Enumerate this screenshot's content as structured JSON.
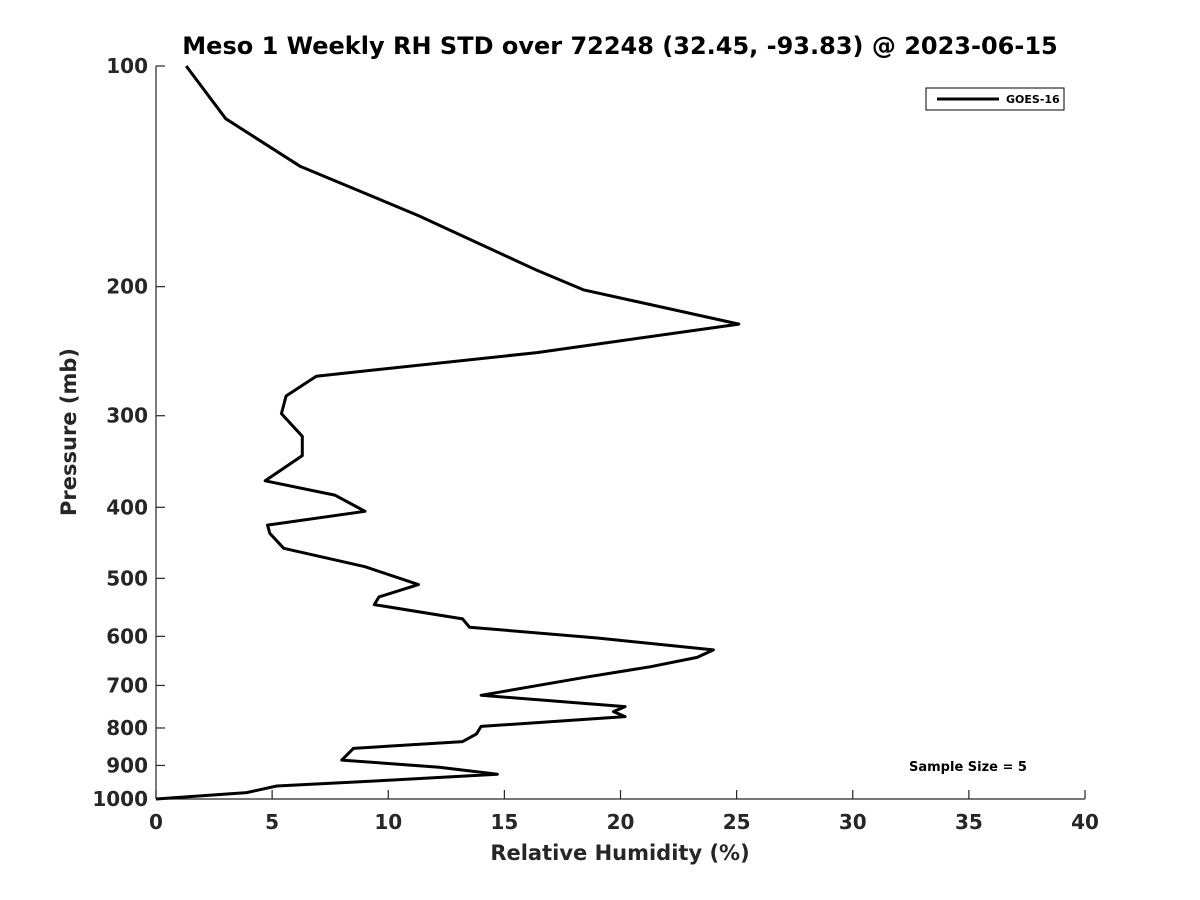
{
  "chart_data": {
    "type": "line",
    "title": "Meso 1 Weekly RH STD over 72248 (32.45, -93.83) @ 2023-06-15",
    "xlabel": "Relative Humidity (%)",
    "ylabel": "Pressure (mb)",
    "xlim": [
      0,
      40
    ],
    "ylim": [
      1000,
      100
    ],
    "y_scale": "log",
    "y_reversed": true,
    "grid": false,
    "legend_position": "top-right",
    "x_ticks": [
      "0",
      "5",
      "10",
      "15",
      "20",
      "25",
      "30",
      "35",
      "40"
    ],
    "y_ticks": [
      "100",
      "200",
      "300",
      "400",
      "500",
      "600",
      "700",
      "800",
      "900",
      "1000"
    ],
    "x_tick_values": [
      0,
      5,
      10,
      15,
      20,
      25,
      30,
      35,
      40
    ],
    "y_tick_values": [
      100,
      200,
      300,
      400,
      500,
      600,
      700,
      800,
      900,
      1000
    ],
    "annotation": "Sample Size = 5",
    "series": [
      {
        "name": "GOES-16",
        "color": "#000000",
        "x": [
          1.3,
          3.0,
          6.2,
          11.3,
          16.4,
          18.4,
          25.1,
          16.4,
          6.9,
          5.6,
          5.4,
          6.3,
          6.3,
          4.7,
          7.7,
          9.0,
          4.8,
          4.9,
          5.5,
          9.0,
          11.3,
          9.6,
          9.4,
          13.2,
          13.5,
          19.0,
          24.0,
          23.3,
          21.3,
          18.5,
          14.0,
          20.2,
          19.7,
          20.2,
          14.0,
          13.8,
          13.2,
          8.5,
          8.0,
          12.2,
          14.7,
          10.0,
          5.2,
          3.9,
          0.0
        ],
        "y": [
          100,
          118,
          137,
          160,
          190,
          202,
          225,
          246,
          265,
          282,
          298,
          320,
          340,
          368,
          385,
          405,
          423,
          434,
          455,
          482,
          510,
          530,
          543,
          568,
          583,
          603,
          626,
          641,
          660,
          682,
          722,
          748,
          760,
          772,
          796,
          815,
          835,
          853,
          885,
          905,
          925,
          943,
          960,
          980,
          1000
        ]
      }
    ]
  }
}
